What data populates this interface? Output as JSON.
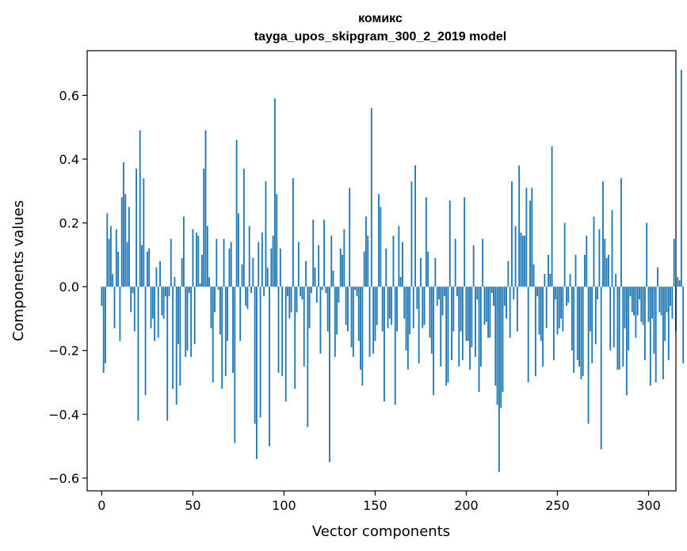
{
  "chart_data": {
    "type": "bar",
    "title_line1": "комикс",
    "title_line2": "tayga_upos_skipgram_300_2_2019 model",
    "xlabel": "Vector components",
    "ylabel": "Components values",
    "xlim": [
      -8,
      315
    ],
    "ylim": [
      -0.64,
      0.74
    ],
    "xticks": [
      0,
      50,
      100,
      150,
      200,
      250,
      300
    ],
    "xtick_labels": [
      "0",
      "50",
      "100",
      "150",
      "200",
      "250",
      "300"
    ],
    "yticks": [
      -0.6,
      -0.4,
      -0.2,
      0.0,
      0.2,
      0.4,
      0.6
    ],
    "ytick_labels": [
      "−0.6",
      "−0.4",
      "−0.2",
      "0.0",
      "0.2",
      "0.4",
      "0.6"
    ],
    "bar_color": "#1f77b4",
    "values": [
      -0.06,
      -0.27,
      -0.24,
      0.23,
      0.15,
      0.19,
      0.04,
      -0.13,
      0.18,
      0.11,
      -0.17,
      0.28,
      0.39,
      0.29,
      0.14,
      0.25,
      -0.08,
      -0.02,
      -0.14,
      0.37,
      -0.42,
      0.49,
      0.13,
      0.34,
      -0.34,
      0.11,
      0.12,
      -0.13,
      -0.1,
      -0.17,
      0.06,
      -0.16,
      0.08,
      -0.09,
      -0.1,
      -0.03,
      -0.42,
      -0.03,
      0.15,
      -0.32,
      0.03,
      -0.37,
      -0.18,
      -0.31,
      0.09,
      0.22,
      -0.22,
      -0.2,
      -0.02,
      -0.22,
      0.18,
      -0.18,
      0.17,
      0.16,
      0.01,
      0.1,
      0.37,
      0.49,
      0.19,
      0.03,
      -0.13,
      -0.3,
      -0.08,
      0.15,
      -0.01,
      -0.15,
      -0.32,
      0.15,
      -0.28,
      -0.17,
      0.12,
      0.14,
      -0.27,
      -0.49,
      0.46,
      0.23,
      -0.17,
      0.07,
      0.37,
      -0.06,
      -0.07,
      0.19,
      -0.02,
      0.09,
      -0.43,
      -0.54,
      0.14,
      -0.41,
      0.17,
      -0.03,
      0.33,
      0.06,
      -0.5,
      0.12,
      0.16,
      0.59,
      0.29,
      -0.27,
      0.12,
      -0.28,
      0.0,
      -0.36,
      -0.03,
      -0.1,
      -0.08,
      0.34,
      -0.32,
      -0.08,
      0.14,
      -0.03,
      -0.04,
      -0.25,
      0.08,
      -0.44,
      -0.13,
      -0.02,
      0.21,
      0.06,
      -0.05,
      0.13,
      -0.21,
      -0.01,
      0.21,
      -0.02,
      -0.14,
      -0.55,
      0.16,
      0.05,
      -0.22,
      -0.15,
      -0.05,
      0.12,
      0.1,
      0.18,
      -0.12,
      -0.14,
      0.31,
      -0.19,
      -0.22,
      -0.01,
      -0.03,
      -0.17,
      -0.26,
      -0.31,
      0.11,
      0.22,
      0.16,
      -0.22,
      0.56,
      -0.21,
      -0.17,
      -0.12,
      0.29,
      0.25,
      -0.14,
      -0.36,
      0.12,
      -0.13,
      -0.1,
      -0.12,
      0.16,
      -0.37,
      -0.14,
      0.19,
      0.03,
      0.14,
      -0.1,
      -0.2,
      -0.26,
      -0.15,
      0.33,
      -0.13,
      0.38,
      -0.07,
      -0.24,
      0.09,
      -0.13,
      -0.12,
      0.28,
      0.11,
      -0.16,
      -0.21,
      -0.34,
      0.09,
      -0.06,
      -0.04,
      -0.25,
      -0.09,
      -0.03,
      -0.31,
      -0.3,
      0.27,
      -0.23,
      -0.14,
      0.15,
      -0.03,
      -0.25,
      -0.14,
      -0.23,
      0.28,
      -0.17,
      -0.17,
      -0.26,
      -0.19,
      0.13,
      -0.22,
      -0.04,
      -0.33,
      -0.25,
      0.15,
      -0.12,
      -0.11,
      -0.16,
      -0.16,
      -0.02,
      -0.06,
      -0.31,
      -0.37,
      -0.58,
      -0.38,
      -0.33,
      -0.06,
      -0.1,
      0.08,
      -0.16,
      0.33,
      -0.04,
      0.19,
      -0.14,
      0.38,
      0.17,
      0.16,
      0.16,
      0.31,
      -0.3,
      0.27,
      0.31,
      0.07,
      -0.28,
      -0.03,
      -0.15,
      -0.17,
      -0.25,
      0.04,
      -0.13,
      0.1,
      0.04,
      0.44,
      -0.23,
      -0.04,
      -0.15,
      -0.13,
      -0.1,
      -0.14,
      0.2,
      -0.06,
      -0.05,
      0.04,
      -0.2,
      -0.27,
      0.1,
      -0.23,
      -0.25,
      -0.29,
      -0.28,
      0.1,
      0.16,
      -0.43,
      -0.14,
      -0.24,
      0.22,
      -0.18,
      -0.04,
      0.18,
      -0.51,
      0.33,
      0.15,
      0.09,
      0.1,
      -0.2,
      0.24,
      -0.19,
      0.04,
      -0.26,
      -0.26,
      0.34,
      -0.25,
      -0.13,
      -0.34,
      -0.2,
      -0.03,
      -0.08,
      -0.09,
      -0.16,
      -0.09,
      -0.04,
      -0.11,
      -0.12,
      -0.23,
      0.2,
      -0.11,
      -0.31,
      -0.1,
      -0.21,
      -0.3,
      0.06,
      -0.08,
      -0.09,
      -0.29,
      -0.17,
      -0.08,
      -0.23,
      -0.06,
      -0.1,
      0.15,
      -0.14,
      0.03,
      0.02,
      0.68,
      -0.24
    ]
  }
}
